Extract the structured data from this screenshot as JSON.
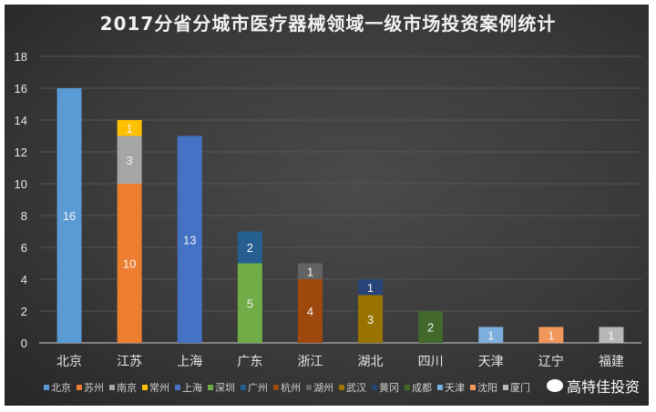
{
  "chart_data": {
    "type": "bar",
    "stacked": true,
    "title": "2017分省分城市医疗器械领域一级市场投资案例统计",
    "xlabel": "",
    "ylabel": "",
    "ylim": [
      0,
      18
    ],
    "yticks": [
      0,
      2,
      4,
      6,
      8,
      10,
      12,
      14,
      16,
      18
    ],
    "grid": true,
    "legend_position": "bottom",
    "categories": [
      "北京",
      "江苏",
      "上海",
      "广东",
      "浙江",
      "湖北",
      "四川",
      "天津",
      "辽宁",
      "福建"
    ],
    "series": [
      {
        "name": "北京",
        "color": "#5b9bd5",
        "values": [
          16,
          0,
          0,
          0,
          0,
          0,
          0,
          0,
          0,
          0
        ]
      },
      {
        "name": "苏州",
        "color": "#ed7d31",
        "values": [
          0,
          10,
          0,
          0,
          0,
          0,
          0,
          0,
          0,
          0
        ]
      },
      {
        "name": "南京",
        "color": "#a5a5a5",
        "values": [
          0,
          3,
          0,
          0,
          0,
          0,
          0,
          0,
          0,
          0
        ]
      },
      {
        "name": "常州",
        "color": "#ffc000",
        "values": [
          0,
          1,
          0,
          0,
          0,
          0,
          0,
          0,
          0,
          0
        ]
      },
      {
        "name": "上海",
        "color": "#4472c4",
        "values": [
          0,
          0,
          13,
          0,
          0,
          0,
          0,
          0,
          0,
          0
        ]
      },
      {
        "name": "深圳",
        "color": "#70ad47",
        "values": [
          0,
          0,
          0,
          5,
          0,
          0,
          0,
          0,
          0,
          0
        ]
      },
      {
        "name": "广州",
        "color": "#255e91",
        "values": [
          0,
          0,
          0,
          2,
          0,
          0,
          0,
          0,
          0,
          0
        ]
      },
      {
        "name": "杭州",
        "color": "#9e480e",
        "values": [
          0,
          0,
          0,
          0,
          4,
          0,
          0,
          0,
          0,
          0
        ]
      },
      {
        "name": "湖州",
        "color": "#636363",
        "values": [
          0,
          0,
          0,
          0,
          1,
          0,
          0,
          0,
          0,
          0
        ]
      },
      {
        "name": "武汉",
        "color": "#997300",
        "values": [
          0,
          0,
          0,
          0,
          0,
          3,
          0,
          0,
          0,
          0
        ]
      },
      {
        "name": "黄冈",
        "color": "#264478",
        "values": [
          0,
          0,
          0,
          0,
          0,
          1,
          0,
          0,
          0,
          0
        ]
      },
      {
        "name": "成都",
        "color": "#43682b",
        "values": [
          0,
          0,
          0,
          0,
          0,
          0,
          2,
          0,
          0,
          0
        ]
      },
      {
        "name": "天津",
        "color": "#7cafdd",
        "values": [
          0,
          0,
          0,
          0,
          0,
          0,
          0,
          1,
          0,
          0
        ]
      },
      {
        "name": "沈阳",
        "color": "#f1975a",
        "values": [
          0,
          0,
          0,
          0,
          0,
          0,
          0,
          0,
          1,
          0
        ]
      },
      {
        "name": "厦门",
        "color": "#b7b7b7",
        "values": [
          0,
          0,
          0,
          0,
          0,
          0,
          0,
          0,
          0,
          1
        ]
      }
    ]
  },
  "watermark": "高特佳投资"
}
